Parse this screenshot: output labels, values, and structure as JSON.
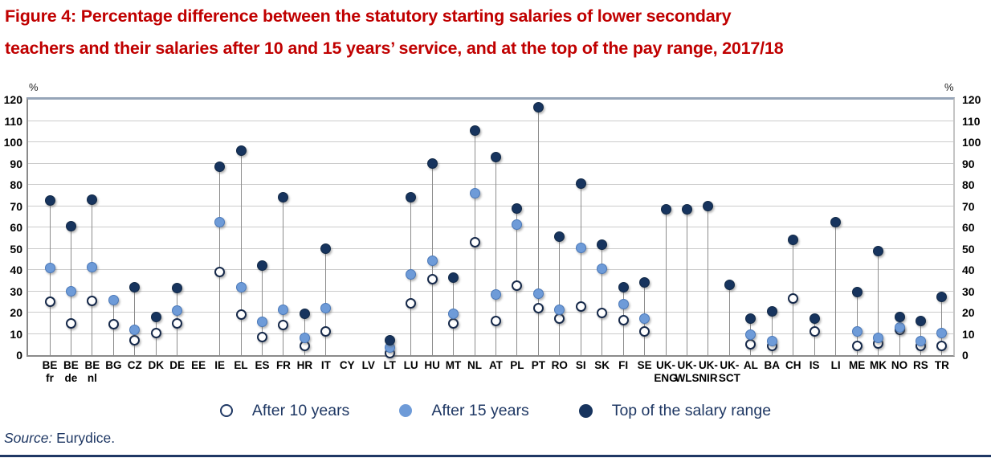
{
  "title": "Figure 4: Percentage difference between the statutory starting salaries of lower secondary teachers and their salaries after 10 and 15 years’ service, and at the top of the pay range, 2017/18",
  "title_lines": [
    "Figure 4: Percentage difference between the statutory starting salaries of lower secondary",
    "teachers and their salaries after 10 and 15 years’ service, and at the top of the pay range, 2017/18"
  ],
  "y_axis": {
    "unit": "%"
  },
  "legend": {
    "items": [
      {
        "label": "After 10 years",
        "marker": "open-circle"
      },
      {
        "label": "After 15 years",
        "marker": "light-blue-dot"
      },
      {
        "label": "Top of the salary range",
        "marker": "dark-navy-dot"
      }
    ]
  },
  "source": {
    "label": "Source:",
    "text": " Eurydice."
  },
  "colors": {
    "title_red": "#C00000",
    "text_navy": "#1F3864",
    "dot_navy": "#17345E",
    "dot_light_blue": "#6E9BD8",
    "gridline": "#CBCBCB",
    "stem": "#8C8C8C"
  },
  "chart_data": {
    "type": "scatter",
    "subtype": "lollipop",
    "title": "Percentage difference between starting salaries and salaries after 10/15 years and at top of pay range, lower secondary teachers, 2017/18",
    "ylabel": "%",
    "ylim": [
      0,
      120
    ],
    "y_ticks": [
      0,
      10,
      20,
      30,
      40,
      50,
      60,
      70,
      80,
      90,
      100,
      110,
      120
    ],
    "grid": true,
    "legend_position": "bottom",
    "categories": [
      [
        "BE",
        "fr"
      ],
      [
        "BE",
        "de"
      ],
      [
        "BE",
        "nl"
      ],
      [
        "BG"
      ],
      [
        "CZ"
      ],
      [
        "DK"
      ],
      [
        "DE"
      ],
      [
        "EE"
      ],
      [
        "IE"
      ],
      [
        "EL"
      ],
      [
        "ES"
      ],
      [
        "FR"
      ],
      [
        "HR"
      ],
      [
        "IT"
      ],
      [
        "CY"
      ],
      [
        "LV"
      ],
      [
        "LT"
      ],
      [
        "LU"
      ],
      [
        "HU"
      ],
      [
        "MT"
      ],
      [
        "NL"
      ],
      [
        "AT"
      ],
      [
        "PL"
      ],
      [
        "PT"
      ],
      [
        "RO"
      ],
      [
        "SI"
      ],
      [
        "SK"
      ],
      [
        "FI"
      ],
      [
        "SE"
      ],
      [
        "UK-",
        "ENG"
      ],
      [
        "UK-",
        "WLS"
      ],
      [
        "UK-",
        "NIR"
      ],
      [
        "UK-",
        "SCT"
      ],
      [
        "AL"
      ],
      [
        "BA"
      ],
      [
        "CH"
      ],
      [
        "IS"
      ],
      [
        "LI"
      ],
      [
        "ME"
      ],
      [
        "MK"
      ],
      [
        "NO"
      ],
      [
        "RS"
      ],
      [
        "TR"
      ]
    ],
    "series": [
      {
        "name": "After 10 years",
        "marker": "open-circle",
        "values": [
          25,
          15,
          25.5,
          14.5,
          7,
          10.5,
          15,
          null,
          39,
          19,
          8.5,
          14,
          4.5,
          11,
          null,
          null,
          1,
          24.5,
          35.5,
          15,
          53,
          16,
          32.5,
          22,
          17,
          23,
          20,
          16.5,
          11,
          null,
          null,
          null,
          null,
          5,
          4.5,
          26.5,
          11,
          null,
          4.5,
          5.5,
          12,
          4.5,
          4.5
        ]
      },
      {
        "name": "After 15 years",
        "marker": "filled-light-blue",
        "values": [
          41,
          30,
          41.5,
          26,
          12,
          null,
          21,
          null,
          62.5,
          32,
          15.5,
          21.5,
          8,
          22,
          null,
          null,
          3.5,
          38,
          44.5,
          19.5,
          76,
          28.5,
          61.5,
          29,
          21.5,
          50.5,
          40.5,
          24,
          17,
          null,
          null,
          null,
          null,
          9.5,
          6.5,
          null,
          null,
          null,
          11,
          8,
          13,
          6.5,
          10.5
        ]
      },
      {
        "name": "Top of the salary range",
        "marker": "filled-dark-navy",
        "values": [
          72.5,
          60.5,
          73,
          null,
          32,
          18,
          31.5,
          null,
          88.5,
          96,
          42,
          74,
          19.5,
          50,
          null,
          null,
          7,
          74,
          90,
          36.5,
          105.5,
          93,
          69,
          116.5,
          55.5,
          80.5,
          52,
          32,
          34,
          68.5,
          68.5,
          70,
          33,
          17,
          20.5,
          54,
          17,
          62.5,
          29.5,
          49,
          18,
          16,
          27.5
        ]
      }
    ]
  }
}
